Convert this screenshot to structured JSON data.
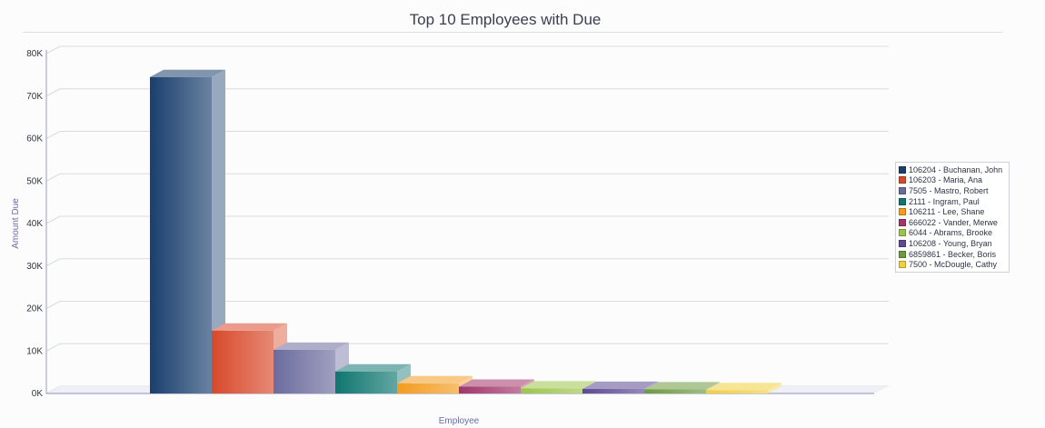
{
  "chart_data": {
    "type": "bar",
    "title": "Top 10 Employees with Due",
    "xlabel": "Employee",
    "ylabel": "Amount Due",
    "ylim": [
      0,
      80000
    ],
    "yticks": [
      "0K",
      "10K",
      "20K",
      "30K",
      "40K",
      "50K",
      "60K",
      "70K",
      "80K"
    ],
    "grid": true,
    "legend_position": "right",
    "categories": [
      "106204 - Buchanan, John",
      "106203 - Maria, Ana",
      "7505 - Mastro, Robert",
      "2111 - Ingram, Paul",
      "106211 - Lee, Shane",
      "666022 - Vander, Merwe",
      "6044 - Abrams, Brooke",
      "106208 - Young, Bryan",
      "6859861 - Becker, Boris",
      "7500 - McDougle, Cathy"
    ],
    "values": [
      74500,
      14800,
      10300,
      5200,
      2400,
      1600,
      1200,
      1100,
      1000,
      800
    ],
    "colors": [
      "#1a3f6e",
      "#d8492a",
      "#6c6c9e",
      "#0f7670",
      "#f39c1f",
      "#a2356a",
      "#9cc44a",
      "#5e4a92",
      "#6c9a3e",
      "#f1cf3e"
    ]
  }
}
